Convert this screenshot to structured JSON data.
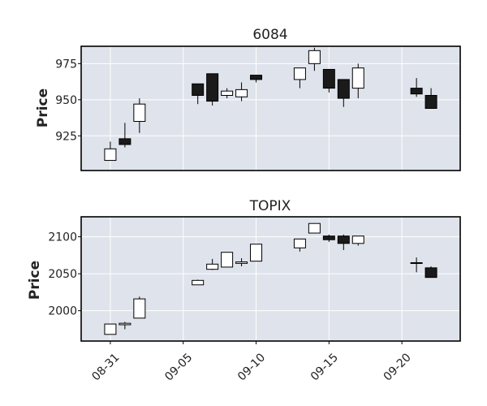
{
  "chart_data": [
    {
      "type": "candlestick",
      "title": "6084",
      "xlabel": "",
      "ylabel": "Price",
      "ylim": [
        901,
        987
      ],
      "yticks": [
        925,
        950,
        975
      ],
      "grid": true,
      "up_color": "#ffffff",
      "down_color": "#1a1a1a",
      "candles": [
        {
          "date": "08-31",
          "open": 908,
          "high": 921,
          "low": 908,
          "close": 916
        },
        {
          "date": "09-01",
          "open": 923,
          "high": 934,
          "low": 917,
          "close": 919
        },
        {
          "date": "09-02",
          "open": 935,
          "high": 951,
          "low": 927,
          "close": 947
        },
        {
          "date": "09-06",
          "open": 961,
          "high": 961,
          "low": 947,
          "close": 953
        },
        {
          "date": "09-07",
          "open": 968,
          "high": 968,
          "low": 946,
          "close": 949
        },
        {
          "date": "09-08",
          "open": 953,
          "high": 958,
          "low": 951,
          "close": 956
        },
        {
          "date": "09-09",
          "open": 952,
          "high": 962,
          "low": 949,
          "close": 957
        },
        {
          "date": "09-10",
          "open": 967,
          "high": 967,
          "low": 962,
          "close": 964
        },
        {
          "date": "09-13",
          "open": 964,
          "high": 972,
          "low": 958,
          "close": 972
        },
        {
          "date": "09-14",
          "open": 975,
          "high": 986,
          "low": 970,
          "close": 984
        },
        {
          "date": "09-15",
          "open": 971,
          "high": 971,
          "low": 955,
          "close": 958
        },
        {
          "date": "09-16",
          "open": 964,
          "high": 964,
          "low": 945,
          "close": 951
        },
        {
          "date": "09-17",
          "open": 958,
          "high": 975,
          "low": 951,
          "close": 972
        },
        {
          "date": "09-21",
          "open": 958,
          "high": 965,
          "low": 952,
          "close": 954
        },
        {
          "date": "09-22",
          "open": 953,
          "high": 958,
          "low": 944,
          "close": 944
        }
      ]
    },
    {
      "type": "candlestick",
      "title": "TOPIX",
      "xlabel": "",
      "ylabel": "Price",
      "ylim": [
        1959,
        2127
      ],
      "yticks": [
        2000,
        2050,
        2100
      ],
      "grid": true,
      "up_color": "#ffffff",
      "down_color": "#1a1a1a",
      "xticks": [
        "08-31",
        "09-05",
        "09-10",
        "09-15",
        "09-20"
      ],
      "candles": [
        {
          "date": "08-31",
          "open": 1968,
          "high": 1982,
          "low": 1968,
          "close": 1982
        },
        {
          "date": "09-01",
          "open": 1981,
          "high": 1985,
          "low": 1975,
          "close": 1983
        },
        {
          "date": "09-02",
          "open": 1990,
          "high": 2019,
          "low": 1990,
          "close": 2016
        },
        {
          "date": "09-06",
          "open": 2035,
          "high": 2042,
          "low": 2035,
          "close": 2041
        },
        {
          "date": "09-07",
          "open": 2056,
          "high": 2070,
          "low": 2055,
          "close": 2063
        },
        {
          "date": "09-08",
          "open": 2059,
          "high": 2079,
          "low": 2059,
          "close": 2079
        },
        {
          "date": "09-09",
          "open": 2064,
          "high": 2071,
          "low": 2060,
          "close": 2066
        },
        {
          "date": "09-10",
          "open": 2067,
          "high": 2090,
          "low": 2067,
          "close": 2090
        },
        {
          "date": "09-13",
          "open": 2085,
          "high": 2097,
          "low": 2080,
          "close": 2097
        },
        {
          "date": "09-14",
          "open": 2105,
          "high": 2118,
          "low": 2105,
          "close": 2118
        },
        {
          "date": "09-15",
          "open": 2101,
          "high": 2103,
          "low": 2093,
          "close": 2096
        },
        {
          "date": "09-16",
          "open": 2101,
          "high": 2103,
          "low": 2082,
          "close": 2091
        },
        {
          "date": "09-17",
          "open": 2091,
          "high": 2101,
          "low": 2088,
          "close": 2101
        },
        {
          "date": "09-21",
          "open": 2064,
          "high": 2072,
          "low": 2052,
          "close": 2065
        },
        {
          "date": "09-22",
          "open": 2058,
          "high": 2060,
          "low": 2045,
          "close": 2045
        }
      ]
    }
  ]
}
